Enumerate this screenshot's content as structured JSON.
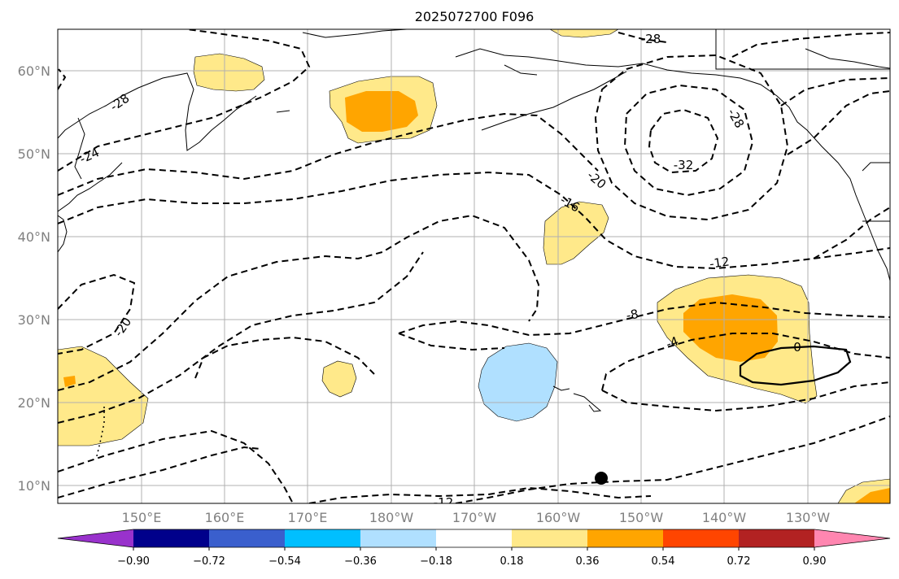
{
  "title": "2025072700 F096",
  "lat_labels": [
    "60°N",
    "50°N",
    "40°N",
    "30°N",
    "20°N",
    "10°N"
  ],
  "lon_labels": [
    "150°E",
    "160°E",
    "170°E",
    "180°W",
    "170°W",
    "160°W",
    "150°W",
    "140°W",
    "130°W"
  ],
  "contour_labels": [
    "-32",
    "-28",
    "-28",
    "-28",
    "-24",
    "-20",
    "-20",
    "-16",
    "-12",
    "-12",
    "-8",
    "-4",
    "0"
  ],
  "colorbar": {
    "tick_labels": [
      "−0.90",
      "−0.72",
      "−0.54",
      "−0.36",
      "−0.18",
      "0.18",
      "0.36",
      "0.54",
      "0.72",
      "0.90"
    ],
    "colors": [
      "#9932cc",
      "#00008b",
      "#3a5fcd",
      "#00bfff",
      "#b0e0ff",
      "#ffffff",
      "#ffe98a",
      "#ffa500",
      "#ff4500",
      "#b22222",
      "#ff86b0"
    ]
  }
}
